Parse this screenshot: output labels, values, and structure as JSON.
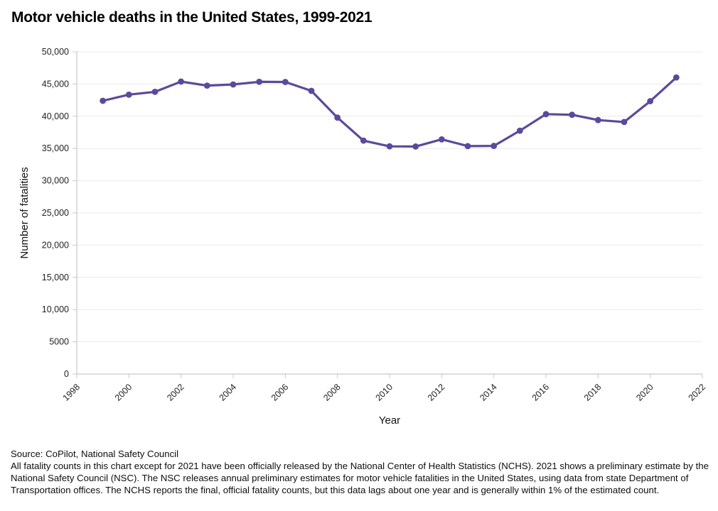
{
  "title": "Motor vehicle deaths in the United States, 1999-2021",
  "colors": {
    "line": "#5b4a9b",
    "grid": "#e9e9e9",
    "axis": "#c9c9c9",
    "tick_text": "#222222",
    "text": "#111111"
  },
  "chart_data": {
    "type": "line",
    "title": "Motor vehicle deaths in the United States, 1999-2021",
    "xlabel": "Year",
    "ylabel": "Number of fatalities",
    "series_name": "Motor vehicle deaths",
    "series_color": "#5b4a9b",
    "marker": "circle",
    "grid": "horizontal",
    "legend": "none",
    "xlim": [
      1998,
      2022
    ],
    "ylim": [
      0,
      50000
    ],
    "x": [
      1999,
      2000,
      2001,
      2002,
      2003,
      2004,
      2005,
      2006,
      2007,
      2008,
      2009,
      2010,
      2011,
      2012,
      2013,
      2014,
      2015,
      2016,
      2017,
      2018,
      2019,
      2020,
      2021
    ],
    "values": [
      42401,
      43354,
      43788,
      45380,
      44757,
      44933,
      45343,
      45316,
      43945,
      39790,
      36216,
      35332,
      35303,
      36415,
      35369,
      35398,
      37757,
      40327,
      40231,
      39404,
      39107,
      42338,
      46020
    ],
    "xticks": {
      "values": [
        1998,
        2000,
        2002,
        2004,
        2006,
        2008,
        2010,
        2012,
        2014,
        2016,
        2018,
        2020,
        2022
      ],
      "labels": [
        "1998",
        "2000",
        "2002",
        "2004",
        "2006",
        "2008",
        "2010",
        "2012",
        "2014",
        "2016",
        "2018",
        "2020",
        "2022"
      ]
    },
    "yticks": {
      "values": [
        0,
        5000,
        10000,
        15000,
        20000,
        25000,
        30000,
        35000,
        40000,
        45000,
        50000
      ],
      "labels": [
        "0",
        "5000",
        "10,000",
        "15,000",
        "20,000",
        "25,000",
        "30,000",
        "35,000",
        "40,000",
        "45,000",
        "50,000"
      ]
    }
  },
  "footer": {
    "source": "Source: CoPilot, National Safety Council",
    "note": "All fatality counts in this chart except for 2021 have been officially released by the National Center of Health Statistics (NCHS). 2021 shows a preliminary estimate by the National Safety Council (NSC). The NSC releases annual preliminary estimates for motor vehicle fatalities in the United States, using data from state Department of Transportation offices. The NCHS reports the final, official fatality counts, but this data lags about one year and is generally within 1% of the estimated count."
  }
}
